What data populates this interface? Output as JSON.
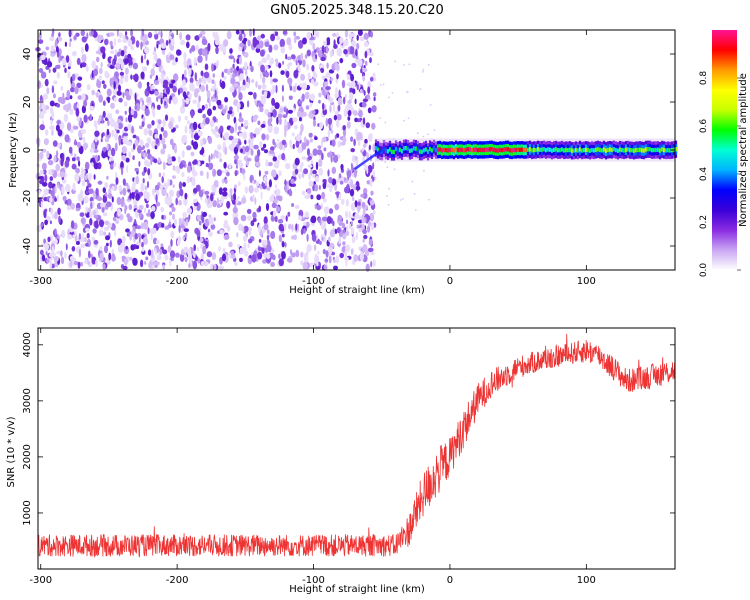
{
  "title": "GN05.2025.348.15.20.C20",
  "chart_data": [
    {
      "type": "heatmap",
      "name": "spectrogram",
      "xlabel": "Height of straight line (km)",
      "ylabel": "Frequency (Hz)",
      "xlim": [
        -302,
        165
      ],
      "ylim": [
        -50,
        50
      ],
      "xticks": [
        -300,
        -200,
        -100,
        0,
        100
      ],
      "yticks": [
        -40,
        -20,
        0,
        20,
        40
      ],
      "noise_region_x": [
        -302,
        -55
      ],
      "signal_band": {
        "x_start": -55,
        "x_end": 165,
        "freq_center": 0,
        "freq_halfwidth": 2
      },
      "strong_band": {
        "x_start": -10,
        "x_end": 55
      }
    },
    {
      "type": "line",
      "name": "snr",
      "xlabel": "Height of straight line (km)",
      "ylabel": "SNR (10 * v/v)",
      "xlim": [
        -302,
        165
      ],
      "ylim": [
        0,
        4300
      ],
      "xticks": [
        -300,
        -200,
        -100,
        0,
        100
      ],
      "yticks": [
        1000,
        2000,
        3000,
        4000
      ],
      "color": "#ee3333",
      "series": [
        {
          "name": "SNR",
          "x": [
            -302,
            -250,
            -200,
            -150,
            -100,
            -60,
            -40,
            -30,
            -20,
            -10,
            0,
            10,
            20,
            30,
            50,
            70,
            90,
            100,
            110,
            130,
            150,
            165
          ],
          "values": [
            420,
            420,
            420,
            420,
            420,
            420,
            420,
            700,
            1300,
            1700,
            2000,
            2500,
            3000,
            3300,
            3600,
            3750,
            3850,
            3900,
            3800,
            3350,
            3450,
            3550
          ],
          "noise_amplitude": [
            200,
            200,
            200,
            200,
            200,
            200,
            200,
            300,
            400,
            450,
            350,
            350,
            300,
            250,
            200,
            200,
            200,
            220,
            220,
            220,
            220,
            220
          ]
        }
      ]
    }
  ],
  "colorbar": {
    "label": "Normalized spectral amplitude",
    "range": [
      0,
      1
    ],
    "ticks": [
      0.0,
      0.2,
      0.4,
      0.6,
      0.8
    ],
    "tick_labels": [
      "0.0",
      "0.2",
      "0.4",
      "0.6",
      "0.8"
    ],
    "stops": [
      "#ffffff",
      "#c9a6f3",
      "#8a2be2",
      "#3a00d8",
      "#0000ff",
      "#00b4ff",
      "#00ffd2",
      "#00ff00",
      "#c8ff00",
      "#ffff00",
      "#ff9900",
      "#ff0000",
      "#ff1493"
    ]
  }
}
